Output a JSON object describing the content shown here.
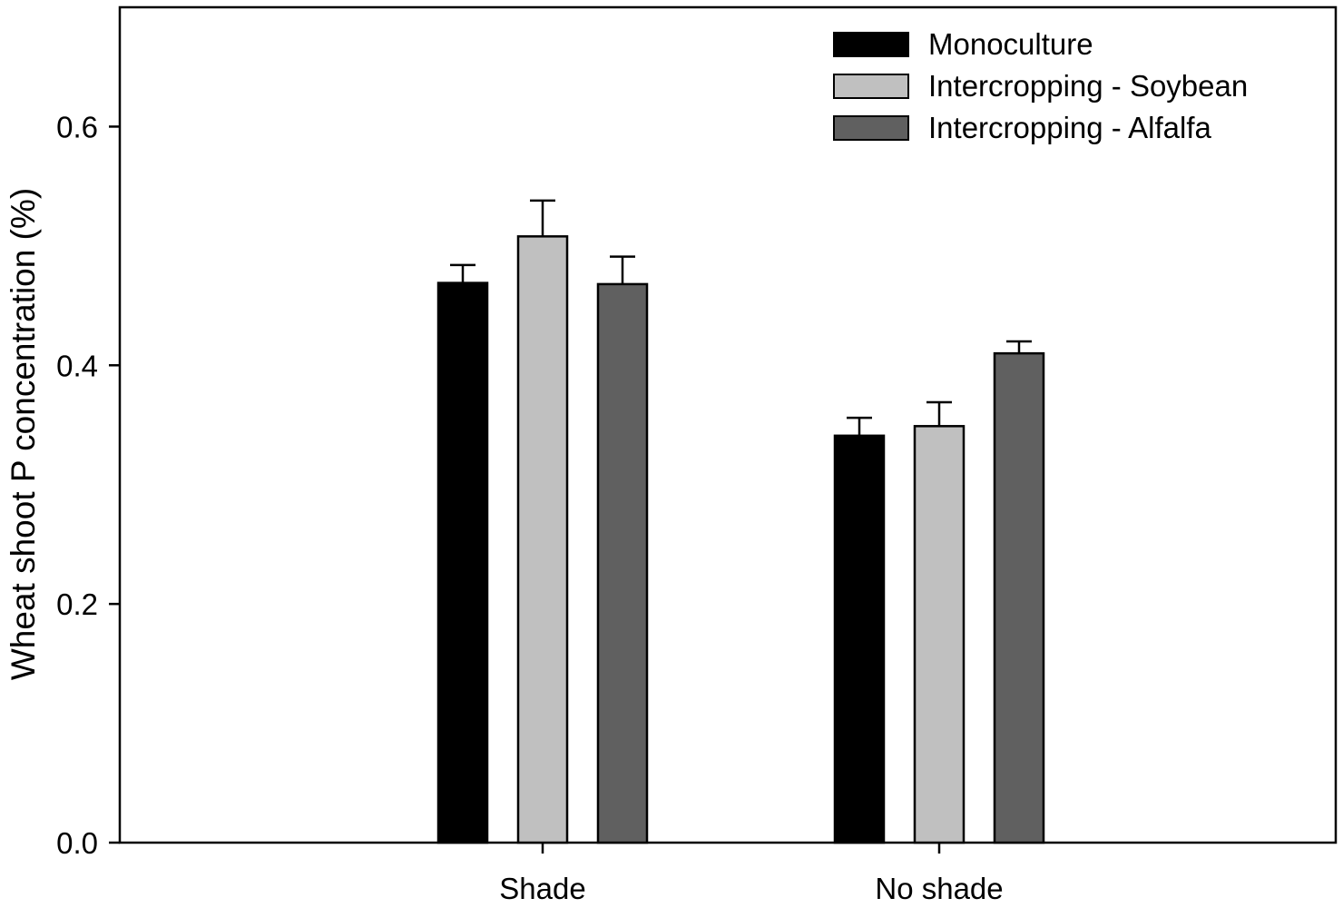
{
  "chart_data": {
    "type": "bar",
    "title": "",
    "xlabel": "",
    "ylabel": "Wheat shoot P concentration (%)",
    "ylim": [
      0,
      0.7
    ],
    "yticks": [
      0.0,
      0.2,
      0.4,
      0.6
    ],
    "ytick_labels": [
      "0.0",
      "0.2",
      "0.4",
      "0.6"
    ],
    "categories": [
      "Shade",
      "No shade"
    ],
    "series": [
      {
        "name": "Monoculture",
        "color": "#000000",
        "values": [
          0.469,
          0.341
        ],
        "errors": [
          0.015,
          0.015
        ]
      },
      {
        "name": "Intercropping - Soybean",
        "color": "#c0c0c0",
        "values": [
          0.508,
          0.349
        ],
        "errors": [
          0.03,
          0.02
        ]
      },
      {
        "name": "Intercropping - Alfalfa",
        "color": "#606060",
        "values": [
          0.468,
          0.41
        ],
        "errors": [
          0.023,
          0.01
        ]
      }
    ],
    "legend_position": "top-right",
    "grid": false
  }
}
